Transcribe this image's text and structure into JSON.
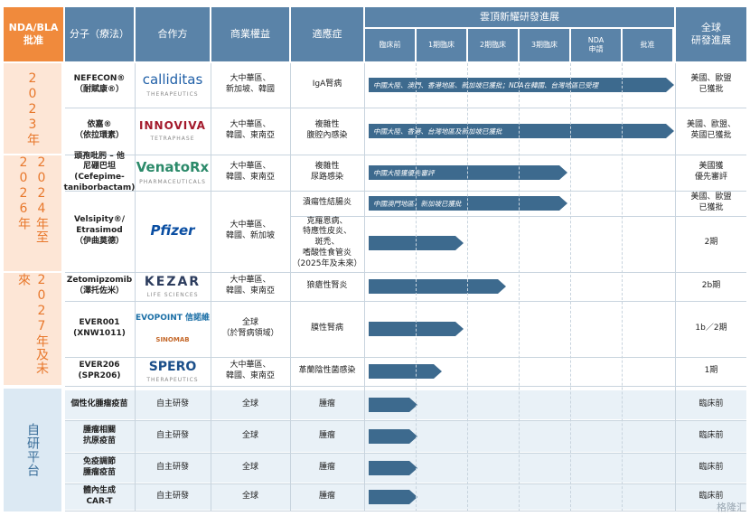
{
  "header": {
    "approval": "NDA/BLA\n批准",
    "molecule": "分子（療法）",
    "partner": "合作方",
    "rights": "商業權益",
    "indication": "適應症",
    "progress_group": "雲頂新耀研發進展",
    "global_progress": "全球\n研發進展",
    "stages": [
      "臨床前",
      "1期臨床",
      "2期臨床",
      "3期臨床",
      "NDA\n申請",
      "批准"
    ]
  },
  "periods": {
    "p2023": "2023年",
    "p2024": "2024年至2026年",
    "p2027": "2027年及未來",
    "inhouse": "自研平台"
  },
  "rows": [
    {
      "molecule": "NEFECON®\n（耐賦康®）",
      "partner": "calliditas",
      "partner_sub": "THERAPEUTICS",
      "rights": "大中華區、\n新加坡、韓國",
      "indication": "IgA腎病",
      "progress": 1.0,
      "bar_label": "中國大陸、澳門、香港地區、新加坡已獲批；NDA在韓國、台灣地區已受理",
      "global": "美國、歐盟\n已獲批"
    },
    {
      "molecule": "依嘉®\n（依拉環素）",
      "partner": "INNOVIVA",
      "partner_sub": "TETRAPHASE",
      "rights": "大中華區、\n韓國、東南亞",
      "indication": "複雜性\n腹腔內感染",
      "progress": 1.0,
      "bar_label": "中國大陸、香港、台灣地區及新加坡已獲批",
      "global": "美國、歐盟、\n英國已獲批"
    },
    {
      "molecule": "頭孢吡肟 – 他\n尼硼巴坦\n(Cefepime-\ntaniborbactam)",
      "partner": "VenatoRx",
      "partner_sub": "PHARMACEUTICALS",
      "rights": "大中華區、\n韓國、東南亞",
      "indication": "複雜性\n尿路感染",
      "progress": 0.65,
      "bar_label": "中國大陸獲優先審評",
      "global": "美國獲\n優先審評"
    },
    {
      "molecule": "Velsipity®/\nEtrasimod\n（伊曲莫德）",
      "partner": "Pfizer",
      "partner_sub": "",
      "rights": "大中華區、\n韓國、新加坡",
      "indication": "潰瘍性結腸炎",
      "progress": 0.65,
      "bar_label": "中國澳門地區、新加坡已獲批",
      "global": "美國、歐盟\n已獲批"
    },
    {
      "molecule": "",
      "partner": "",
      "partner_sub": "",
      "rights": "",
      "indication": "克羅恩病、\n特應性皮炎、\n斑禿、\n嗜酸性食管炎\n（2025年及未來）",
      "progress": 0.31,
      "bar_label": "",
      "global": "2期"
    },
    {
      "molecule": "Zetomipzomib\n（澤托佐米）",
      "partner": "KEZAR",
      "partner_sub": "LIFE SCIENCES",
      "rights": "大中華區、\n韓國、東南亞",
      "indication": "狼瘡性腎炎",
      "progress": 0.45,
      "bar_label": "",
      "global": "2b期"
    },
    {
      "molecule": "EVER001\n(XNW1011)",
      "partner": "EVOPOINT 信諾維",
      "partner_sub": "SINOMAB",
      "rights": "全球\n（於腎病領域）",
      "indication": "膜性腎病",
      "progress": 0.31,
      "bar_label": "",
      "global": "1b／2期"
    },
    {
      "molecule": "EVER206\n(SPR206)",
      "partner": "SPERO",
      "partner_sub": "THERAPEUTICS",
      "rights": "大中華區、\n韓國、東南亞",
      "indication": "革蘭陰性菌感染",
      "progress": 0.24,
      "bar_label": "",
      "global": "1期"
    },
    {
      "molecule": "個性化腫瘤疫苗",
      "partner": "自主研發",
      "partner_sub": "",
      "rights": "全球",
      "indication": "腫瘤",
      "progress": 0.16,
      "bar_label": "",
      "global": "臨床前"
    },
    {
      "molecule": "腫瘤相關\n抗原疫苗",
      "partner": "自主研發",
      "partner_sub": "",
      "rights": "全球",
      "indication": "腫瘤",
      "progress": 0.16,
      "bar_label": "",
      "global": "臨床前"
    },
    {
      "molecule": "免疫調節\n腫瘤疫苗",
      "partner": "自主研發",
      "partner_sub": "",
      "rights": "全球",
      "indication": "腫瘤",
      "progress": 0.16,
      "bar_label": "",
      "global": "臨床前"
    },
    {
      "molecule": "體內生成\nCAR-T",
      "partner": "自主研發",
      "partner_sub": "",
      "rights": "全球",
      "indication": "腫瘤",
      "progress": 0.16,
      "bar_label": "",
      "global": "臨床前"
    }
  ],
  "watermark": "格隆汇",
  "colors": {
    "header_blue": "#5a83a8",
    "header_orange": "#f08a3c",
    "bar": "#3d6a8e",
    "band_orange": "#fde6d6",
    "band_blue": "#dce9f3"
  }
}
